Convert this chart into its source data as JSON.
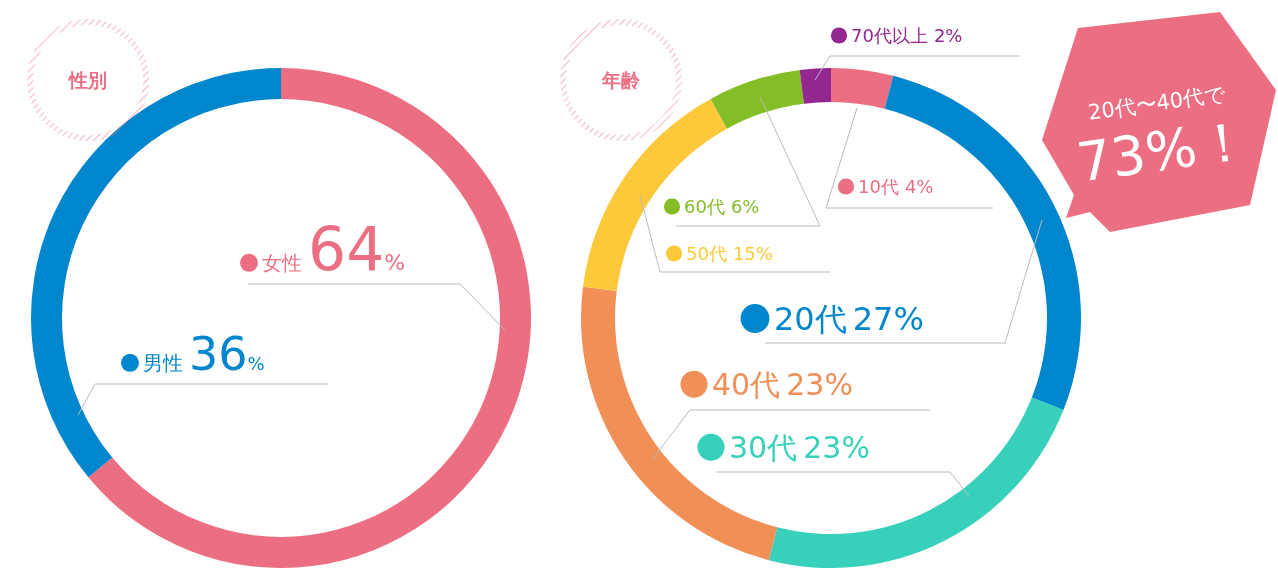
{
  "chart_data": [
    {
      "type": "donut",
      "title": "性別",
      "categories": [
        "女性",
        "男性"
      ],
      "values": [
        64,
        36
      ],
      "colors": [
        "#ec6e82",
        "#0086cd"
      ],
      "value_labels": [
        "64%",
        "36%"
      ],
      "legend": "center"
    },
    {
      "type": "donut",
      "title": "年齢",
      "categories": [
        "10代",
        "20代",
        "30代",
        "40代",
        "50代",
        "60代",
        "70代以上"
      ],
      "values": [
        4,
        27,
        23,
        23,
        15,
        6,
        2
      ],
      "colors": [
        "#ec6e82",
        "#0086cd",
        "#36d0bb",
        "#f09057",
        "#fdc93a",
        "#84bd25",
        "#93268f"
      ],
      "value_labels": [
        "4%",
        "27%",
        "23%",
        "23%",
        "15%",
        "6%",
        "2%"
      ],
      "legend": "center",
      "annotations": [
        "20代〜40代で",
        "73%！"
      ]
    }
  ]
}
